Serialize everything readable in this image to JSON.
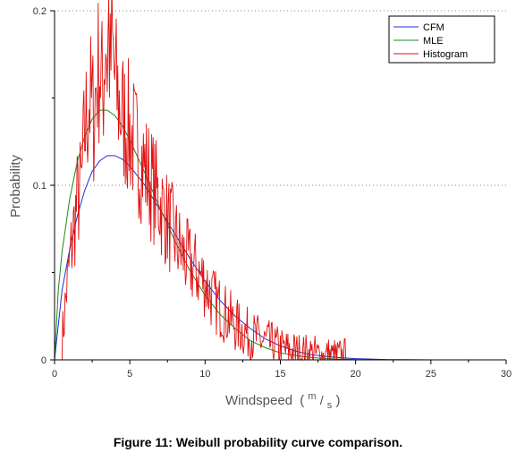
{
  "figure": {
    "caption": "Figure 11: Weibull probability curve comparison."
  },
  "chart_data": {
    "type": "line",
    "title": "",
    "xlabel": "Windspeed",
    "xlabel_unit_num": "m",
    "xlabel_unit_den": "s",
    "ylabel": "Probability",
    "xlim": [
      0,
      30
    ],
    "ylim": [
      0,
      0.2
    ],
    "x_ticks": [
      0,
      5,
      10,
      15,
      20,
      25,
      30
    ],
    "x_tick_labels": [
      "0",
      "5",
      "10",
      "15",
      "20",
      "25",
      "30"
    ],
    "y_ticks": [
      0,
      0.1,
      0.2
    ],
    "y_tick_labels": [
      "0",
      "0.1",
      "0.2"
    ],
    "grid": "horizontal dotted",
    "legend_position": "top-right",
    "series": [
      {
        "name": "CFM",
        "color": "#1f2fd0",
        "kind": "curve",
        "x": [
          0,
          0.5,
          1,
          1.5,
          2,
          2.5,
          3,
          3.5,
          4,
          4.5,
          5,
          6,
          7,
          8,
          9,
          10,
          11,
          12,
          13,
          14,
          15,
          16,
          17,
          18,
          19,
          20,
          22,
          25,
          30
        ],
        "y": [
          0,
          0.04,
          0.063,
          0.082,
          0.097,
          0.108,
          0.114,
          0.117,
          0.117,
          0.115,
          0.111,
          0.1,
          0.086,
          0.072,
          0.058,
          0.045,
          0.034,
          0.025,
          0.018,
          0.012,
          0.008,
          0.005,
          0.003,
          0.002,
          0.0012,
          0.0007,
          0.0002,
          3e-05,
          0
        ]
      },
      {
        "name": "MLE",
        "color": "#1a8a1a",
        "kind": "curve",
        "x": [
          0,
          0.25,
          0.5,
          1,
          1.5,
          2,
          2.5,
          3,
          3.5,
          4,
          4.5,
          5,
          6,
          7,
          8,
          9,
          10,
          11,
          12,
          13,
          14,
          15,
          16,
          17,
          18,
          19,
          20,
          22,
          25,
          30
        ],
        "y": [
          0,
          0.04,
          0.062,
          0.092,
          0.113,
          0.128,
          0.138,
          0.143,
          0.143,
          0.14,
          0.134,
          0.126,
          0.107,
          0.087,
          0.068,
          0.051,
          0.037,
          0.026,
          0.018,
          0.011,
          0.007,
          0.004,
          0.0025,
          0.0014,
          0.0008,
          0.0004,
          0.0002,
          4e-05,
          5e-06,
          0
        ]
      },
      {
        "name": "Histogram",
        "color": "#e01010",
        "kind": "histogram",
        "x": [
          0.5,
          0.8,
          1.2,
          1.5,
          1.8,
          2.0,
          2.3,
          2.6,
          2.8,
          3.0,
          3.2,
          3.4,
          3.5,
          3.6,
          3.7,
          3.8,
          4.0,
          4.2,
          4.5,
          5.0,
          5.5,
          6.0,
          6.5,
          7.0,
          7.5,
          8.0,
          8.5,
          9.0,
          9.5,
          10.0,
          10.5,
          11.0,
          11.5,
          12.0,
          12.5,
          13.0,
          13.5,
          14.0,
          14.5,
          15.0,
          15.5,
          16.0,
          16.5,
          17.0,
          17.5,
          18.0,
          18.5,
          19.0,
          19.5
        ],
        "y": [
          0.01,
          0.04,
          0.07,
          0.09,
          0.1,
          0.13,
          0.15,
          0.14,
          0.16,
          0.17,
          0.15,
          0.19,
          0.17,
          0.195,
          0.16,
          0.18,
          0.16,
          0.15,
          0.14,
          0.13,
          0.12,
          0.11,
          0.1,
          0.09,
          0.08,
          0.07,
          0.06,
          0.055,
          0.05,
          0.045,
          0.035,
          0.03,
          0.025,
          0.02,
          0.017,
          0.014,
          0.012,
          0.01,
          0.008,
          0.006,
          0.005,
          0.004,
          0.003,
          0.003,
          0.002,
          0.002,
          0.001,
          0.001,
          0.001
        ]
      }
    ]
  }
}
